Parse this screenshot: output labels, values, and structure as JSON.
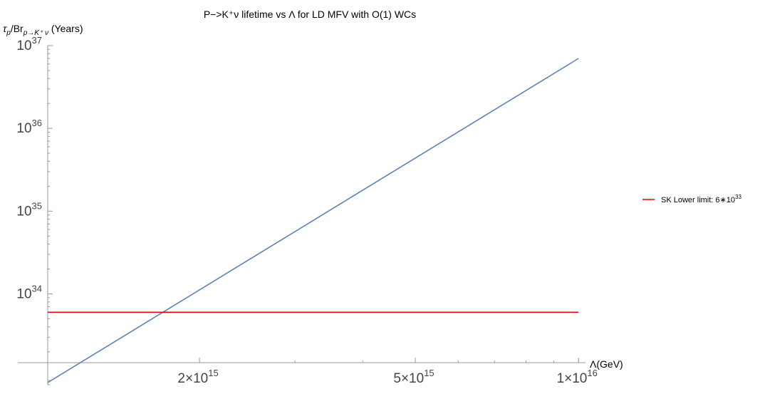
{
  "chart_data": {
    "type": "line",
    "title": "P−>K⁺ν lifetime vs Λ for LD MFV with O(1) WCs",
    "xlabel": "Λ(GeV)",
    "ylabel": {
      "prefix": "τ",
      "prefix_sub": "p",
      "mid": "/Br",
      "mid_sub": "p→K⁺ ν",
      "suffix": " (Years)"
    },
    "x_scale": "log",
    "y_scale": "log",
    "xlim": [
      1050000000000000.0,
      1.03e+16
    ],
    "ylim": [
      8e+32,
      1e+37
    ],
    "x_ticks": [
      {
        "value": 2000000000000000.0,
        "mant": "2",
        "exp": "15"
      },
      {
        "value": 5000000000000000.0,
        "mant": "5",
        "exp": "15"
      },
      {
        "value": 1e+16,
        "mant": "1",
        "exp": "16"
      }
    ],
    "y_ticks": [
      {
        "value": 1e+34,
        "exp": "34"
      },
      {
        "value": 1e+35,
        "exp": "35"
      },
      {
        "value": 1e+36,
        "exp": "36"
      },
      {
        "value": 1e+37,
        "exp": "37"
      }
    ],
    "series": [
      {
        "kind": "lifetime-curve",
        "color": "#5e81b5",
        "x": [
          1050000000000000.0,
          1e+16
        ],
        "y": [
          8.5e+32,
          7e+36
        ]
      },
      {
        "name": "SK Lower limit: 6∗10³³",
        "kind": "limit-line",
        "color": "#e8000b",
        "x": [
          1050000000000000.0,
          1e+16
        ],
        "y": [
          6e+33,
          6e+33
        ]
      }
    ],
    "legend": {
      "position": "right",
      "label_text": "SK Lower limit: 6",
      "label_op": "∗",
      "label_mant": "10",
      "label_exp": "33"
    }
  }
}
